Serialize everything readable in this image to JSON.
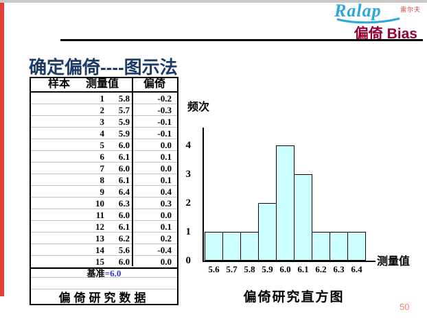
{
  "slide": {
    "page_number": "50",
    "colors": {
      "left_accent_bar": "#e04038",
      "top_strip": "#c8c8c8",
      "title": "#990033",
      "heading": "#1b3a66",
      "logo_blue": "#2aa7df",
      "logo_sub_red": "#cc4433",
      "baseline_value_blue": "#3333cc",
      "page_number": "#f28468"
    }
  },
  "logo": {
    "brand": "Ralap",
    "sub_label": "雷尔夫"
  },
  "header": {
    "title": "偏倚 Bias"
  },
  "heading": {
    "text": "确定偏倚----图示法"
  },
  "table": {
    "columns": [
      "样本",
      "测量值",
      "偏倚"
    ],
    "rows": [
      [
        "1",
        "5.8",
        "-0.2"
      ],
      [
        "2",
        "5.7",
        "-0.3"
      ],
      [
        "3",
        "5.9",
        "-0.1"
      ],
      [
        "4",
        "5.9",
        "-0.1"
      ],
      [
        "5",
        "6.0",
        "0.0"
      ],
      [
        "6",
        "6.1",
        "0.1"
      ],
      [
        "7",
        "6.0",
        "0.0"
      ],
      [
        "8",
        "6.1",
        "0.1"
      ],
      [
        "9",
        "6.4",
        "0.4"
      ],
      [
        "10",
        "6.3",
        "0.3"
      ],
      [
        "11",
        "6.0",
        "0.0"
      ],
      [
        "12",
        "6.1",
        "0.1"
      ],
      [
        "13",
        "6.2",
        "0.2"
      ],
      [
        "14",
        "5.6",
        "-0.4"
      ],
      [
        "15",
        "6.0",
        "0.0"
      ]
    ],
    "baseline_label": "基准",
    "baseline_value": "=6.0",
    "caption": "偏倚研究数据"
  },
  "chart_data": {
    "type": "bar",
    "title": "偏倚研究直方图",
    "ylabel": "频次",
    "xlabel": "测量值",
    "categories": [
      "5.6",
      "5.7",
      "5.8",
      "5.9",
      "6.0",
      "6.1",
      "6.2",
      "6.3",
      "6.4"
    ],
    "values": [
      1,
      1,
      1,
      2,
      4,
      3,
      1,
      1,
      1
    ],
    "yticks": [
      0,
      1,
      2,
      3,
      4
    ],
    "ylim": [
      0,
      4
    ],
    "grid": false,
    "legend": false,
    "bar_fill": "#ccffff",
    "bar_border": "#000000"
  }
}
